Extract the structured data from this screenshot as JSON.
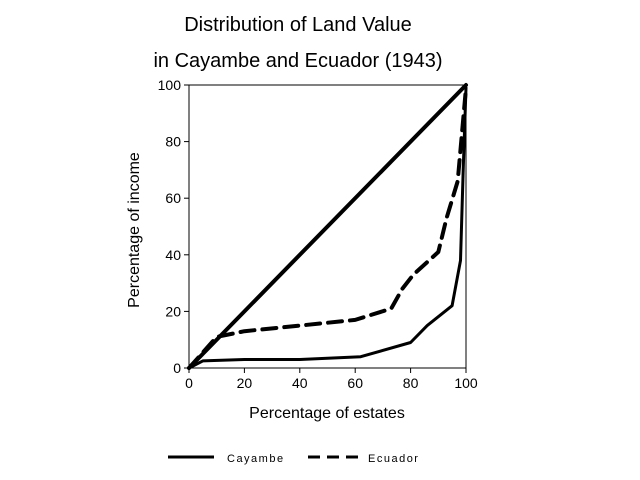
{
  "chart_data": {
    "type": "line",
    "title": [
      "Distribution of Land Value",
      "in Cayambe and Ecuador (1943)"
    ],
    "xlabel": "Percentage of estates",
    "ylabel": "Percentage of income",
    "xlim": [
      0,
      100
    ],
    "ylim": [
      0,
      100
    ],
    "xticks": [
      0,
      20,
      40,
      60,
      80,
      100
    ],
    "yticks": [
      0,
      20,
      40,
      60,
      80,
      100
    ],
    "grid": false,
    "legend_position": "bottom",
    "series": [
      {
        "name": "Cayambe",
        "style": "solid",
        "color": "#000000",
        "x": [
          0,
          5,
          20,
          40,
          62,
          80,
          86,
          95,
          98,
          99,
          100
        ],
        "y": [
          0,
          2.5,
          3,
          3,
          4,
          9,
          15,
          22,
          38,
          70,
          99
        ]
      },
      {
        "name": "Ecuador",
        "style": "dashed",
        "color": "#000000",
        "x": [
          0,
          10,
          20,
          40,
          60,
          73,
          77,
          81,
          90,
          93,
          97,
          100
        ],
        "y": [
          0,
          11,
          13,
          15,
          17,
          21,
          28,
          33,
          41,
          53,
          66,
          99
        ]
      },
      {
        "name": "",
        "style": "solid",
        "color": "#000000",
        "x": [
          0,
          100
        ],
        "y": [
          0,
          100
        ]
      }
    ]
  }
}
